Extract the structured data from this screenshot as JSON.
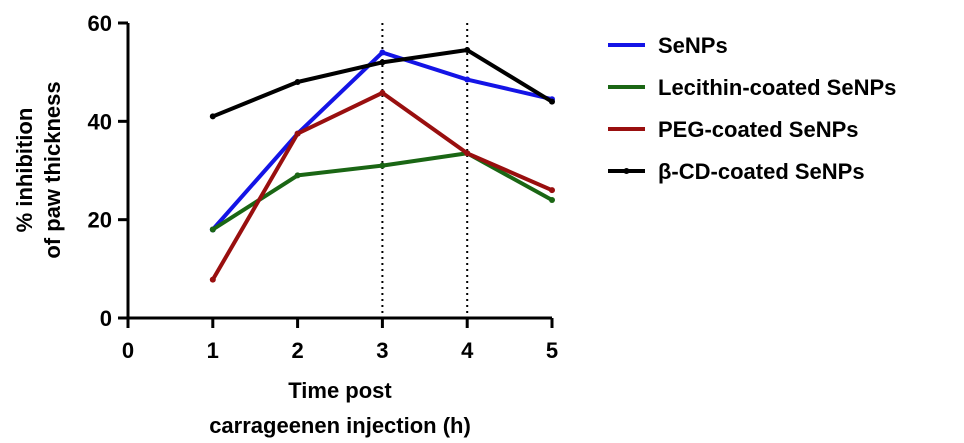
{
  "chart_data": {
    "type": "line",
    "title": "",
    "ylabel_line1": "% inhibition",
    "ylabel_line2": "of paw thickness",
    "xlabel_line1": "Time post",
    "xlabel_line2": "carrageenen injection (h)",
    "xlim": [
      0,
      5
    ],
    "ylim": [
      0,
      60
    ],
    "xticks": [
      "0",
      "1",
      "2",
      "3",
      "4",
      "5"
    ],
    "yticks": [
      "0",
      "20",
      "40",
      "60"
    ],
    "grid": false,
    "vertical_reference_lines": [
      3,
      4
    ],
    "legend_position": "right",
    "x": [
      1,
      2,
      3,
      4,
      5
    ],
    "series": [
      {
        "name": "SeNPs",
        "color": "#1414e6",
        "values": [
          18,
          37.5,
          54,
          48.5,
          44.5
        ]
      },
      {
        "name": "Lecithin-coated SeNPs",
        "color": "#1a6614",
        "values": [
          18,
          29,
          31,
          33.5,
          24
        ]
      },
      {
        "name": "PEG-coated SeNPs",
        "color": "#990f0f",
        "values": [
          7.8,
          37.5,
          45.8,
          33.5,
          26
        ]
      },
      {
        "name": "β-CD-coated SeNPs",
        "color": "#000000",
        "values": [
          41,
          48,
          52,
          54.5,
          44
        ]
      }
    ]
  }
}
